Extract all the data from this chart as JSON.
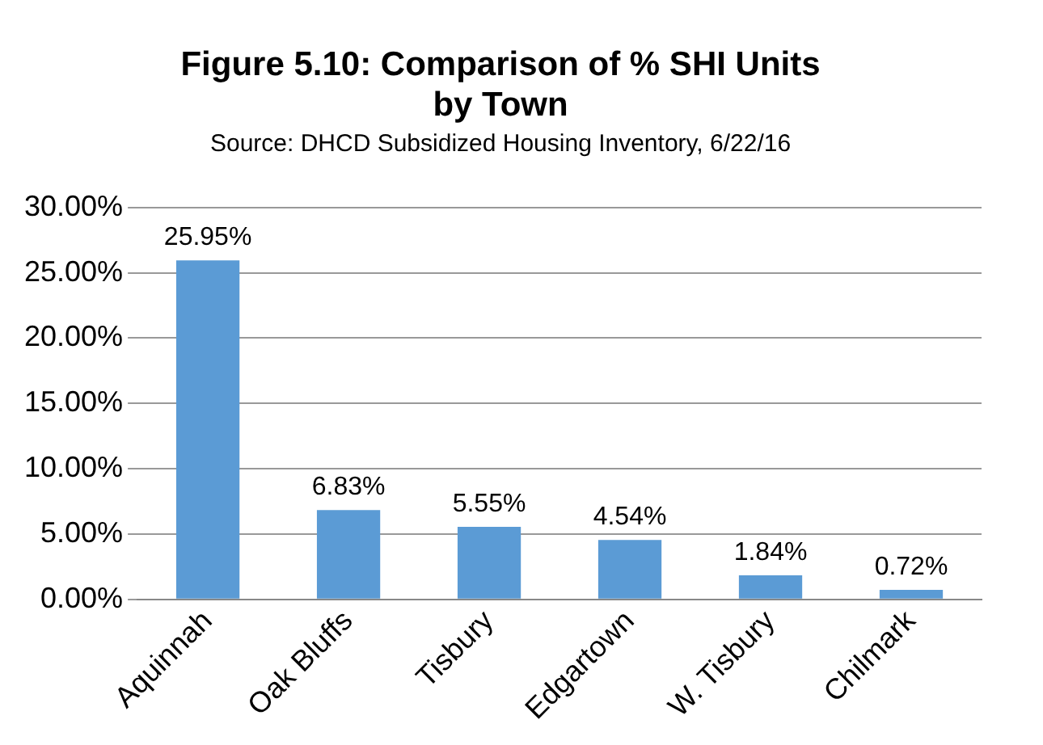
{
  "chart_data": {
    "type": "bar",
    "title": [
      "Figure 5.10: Comparison of % SHI Units",
      "by Town"
    ],
    "subtitle": "Source: DHCD Subsidized Housing Inventory, 6/22/16",
    "categories": [
      "Aquinnah",
      "Oak Bluffs",
      "Tisbury",
      "Edgartown",
      "W. Tisbury",
      "Chilmark"
    ],
    "values": [
      25.95,
      6.83,
      5.55,
      4.54,
      1.84,
      0.72
    ],
    "color": "#5b9bd5",
    "value_labels": [
      "25.95%",
      "6.83%",
      "5.55%",
      "4.54%",
      "1.84%",
      "0.72%"
    ],
    "ylim": [
      0,
      30
    ],
    "yticks": [
      {
        "value": 0,
        "label": "0.00%"
      },
      {
        "value": 5,
        "label": "5.00%"
      },
      {
        "value": 10,
        "label": "10.00%"
      },
      {
        "value": 15,
        "label": "15.00%"
      },
      {
        "value": 20,
        "label": "20.00%"
      },
      {
        "value": 25,
        "label": "25.00%"
      },
      {
        "value": 30,
        "label": "30.00%"
      }
    ],
    "grid": "y",
    "legend": false
  }
}
